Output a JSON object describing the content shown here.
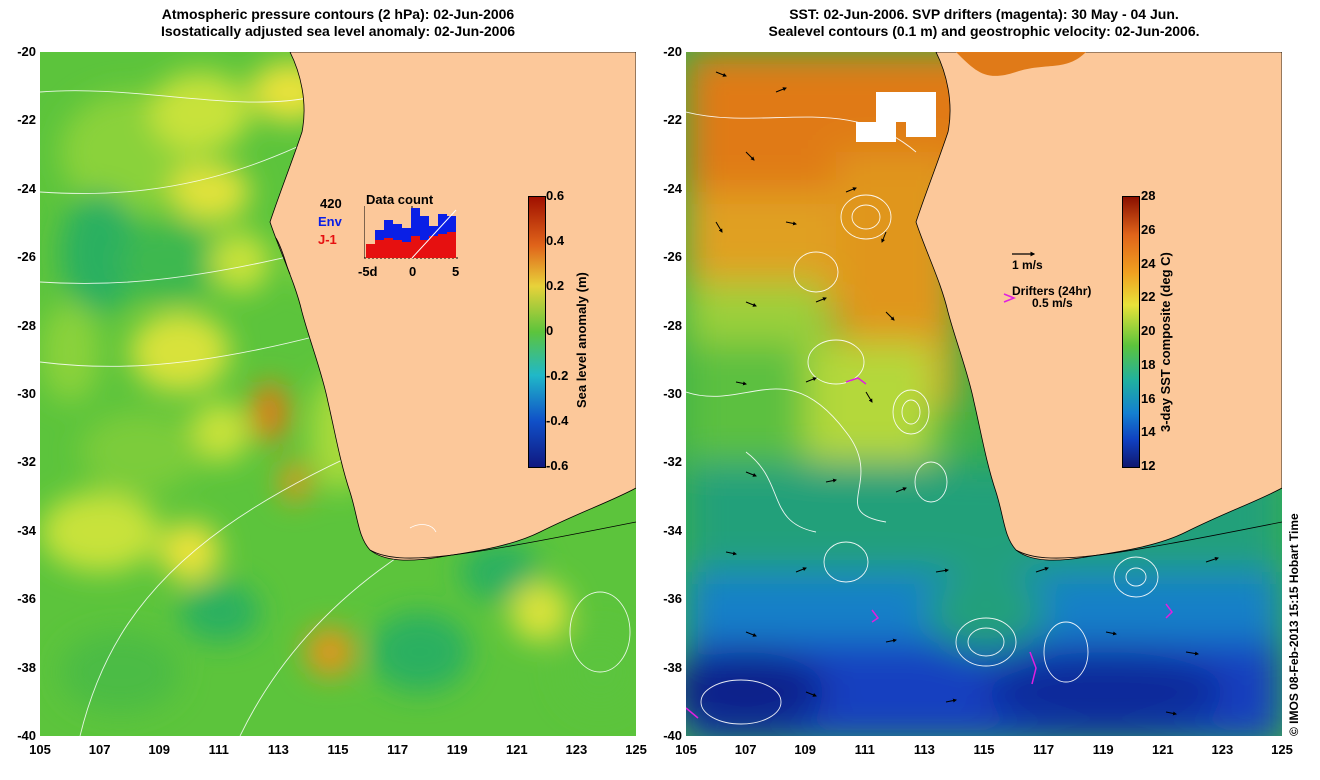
{
  "left_panel": {
    "title_line1": "Atmospheric pressure contours (2 hPa): 02-Jun-2006",
    "title_line2": "Isostatically adjusted sea level anomaly: 02-Jun-2006",
    "colorbar_label": "Sea level anomaly (m)",
    "colorbar_ticks": [
      "0.6",
      "0.4",
      "0.2",
      "0",
      "-0.2",
      "-0.4",
      "-0.6"
    ],
    "inset": {
      "title": "Data count",
      "count": "420",
      "series_env": "Env",
      "series_j1": "J-1",
      "x_ticks": [
        "-5d",
        "0",
        "5"
      ],
      "env_color": "#0a1fe6",
      "j1_color": "#e61010"
    }
  },
  "right_panel": {
    "title_line1": "SST: 02-Jun-2006. SVP drifters (magenta): 30 May - 04 Jun.",
    "title_line2": "Sealevel contours (0.1 m) and geostrophic velocity: 02-Jun-2006.",
    "colorbar_label": "3-day SST composite (deg C)",
    "colorbar_ticks": [
      "28",
      "26",
      "24",
      "22",
      "20",
      "18",
      "16",
      "14",
      "12"
    ],
    "velocity_scale_label": "1 m/s",
    "drifters_label": "Drifters (24hr)",
    "drifters_scale_label": "0.5 m/s",
    "drifter_color": "#e020e0"
  },
  "axes": {
    "lat_ticks": [
      "-20",
      "-22",
      "-24",
      "-26",
      "-28",
      "-30",
      "-32",
      "-34",
      "-36",
      "-38",
      "-40"
    ],
    "lon_ticks": [
      "105",
      "107",
      "109",
      "111",
      "113",
      "115",
      "117",
      "119",
      "121",
      "123",
      "125"
    ]
  },
  "colors": {
    "land": "#fcc89a",
    "ocean_green": "#58c43c"
  },
  "footer": "© IMOS 08-Feb-2013 15:15 Hobart Time"
}
